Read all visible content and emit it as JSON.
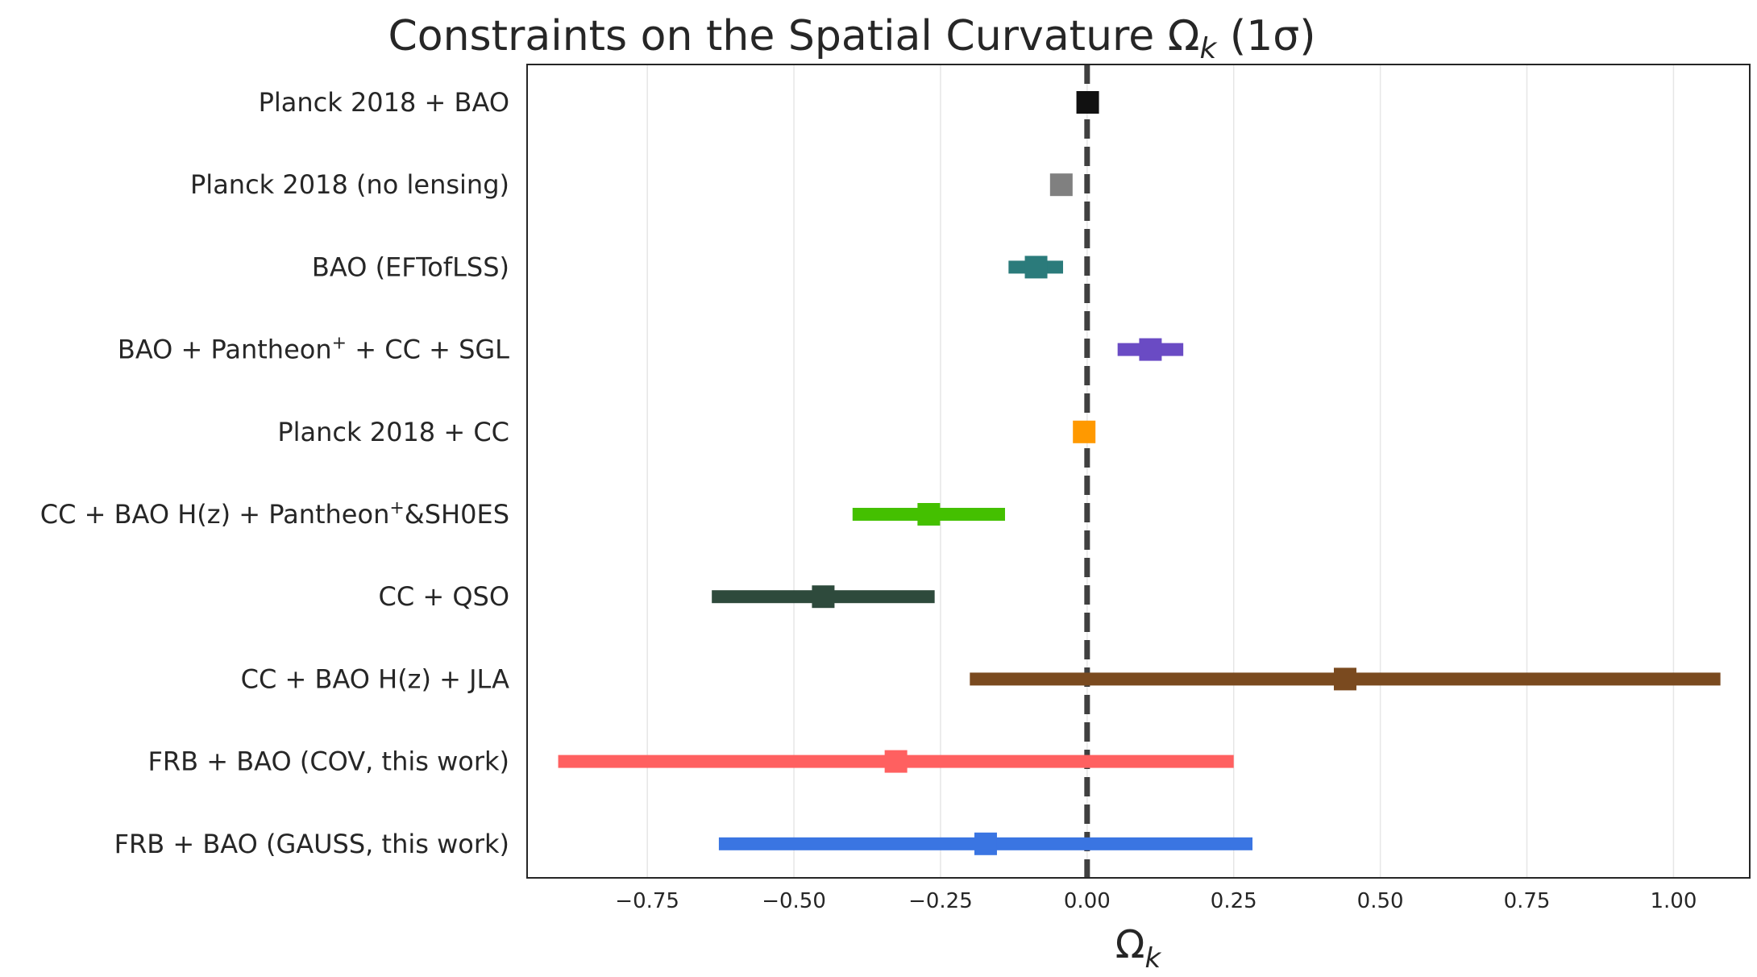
{
  "chart_data": {
    "type": "errorbar",
    "title": "Constraints on the Spatial Curvature Ωₖ (1σ)",
    "title_parts": {
      "pre": "Constraints on the Spatial Curvature Ω",
      "sub": "k",
      "post": " (1σ)"
    },
    "xlabel": "Ωₖ",
    "xlabel_parts": {
      "main": "Ω",
      "sub": "k"
    },
    "xlim": [
      -0.955,
      1.13
    ],
    "xticks": [
      -0.75,
      -0.5,
      -0.25,
      0.0,
      0.25,
      0.5,
      0.75,
      1.0
    ],
    "xtick_labels": [
      "−0.75",
      "−0.50",
      "−0.25",
      "0.00",
      "0.25",
      "0.50",
      "0.75",
      "1.00"
    ],
    "reference_line": {
      "x": 0.0,
      "style": "dashed",
      "color": "#404040"
    },
    "grid": "vertical",
    "entries": [
      {
        "label": "Planck 2018 + BAO",
        "label_parts": [
          "Planck 2018 + BAO"
        ],
        "value": 0.001,
        "low": -0.001,
        "high": 0.003,
        "color": "#111111"
      },
      {
        "label": "Planck 2018 (no lensing)",
        "label_parts": [
          "Planck 2018 (no lensing)"
        ],
        "value": -0.044,
        "low": -0.061,
        "high": -0.026,
        "color": "#808080"
      },
      {
        "label": "BAO (EFTofLSS)",
        "label_parts": [
          "BAO (EFTofLSS)"
        ],
        "value": -0.087,
        "low": -0.134,
        "high": -0.041,
        "color": "#2b7b7b"
      },
      {
        "label": "BAO + Pantheon⁺ + CC + SGL",
        "label_parts": [
          "BAO + Pantheon",
          "+",
          " + CC + SGL"
        ],
        "value": 0.108,
        "low": 0.052,
        "high": 0.164,
        "color": "#6a4bc4"
      },
      {
        "label": "Planck 2018 + CC",
        "label_parts": [
          "Planck 2018 + CC"
        ],
        "value": -0.005,
        "low": -0.015,
        "high": 0.005,
        "color": "#ff9900"
      },
      {
        "label": "CC + BAO H(z) + Pantheon⁺&SH0ES",
        "label_parts": [
          "CC + BAO H(z) + Pantheon",
          "+",
          "&SH0ES"
        ],
        "value": -0.27,
        "low": -0.4,
        "high": -0.14,
        "color": "#44c000"
      },
      {
        "label": "CC + QSO",
        "label_parts": [
          "CC + QSO"
        ],
        "value": -0.45,
        "low": -0.64,
        "high": -0.26,
        "color": "#2e4a3c"
      },
      {
        "label": "CC + BAO H(z) + JLA",
        "label_parts": [
          "CC + BAO H(z) + JLA"
        ],
        "value": 0.44,
        "low": -0.2,
        "high": 1.08,
        "color": "#7a4a1f"
      },
      {
        "label": "FRB + BAO (COV, this work)",
        "label_parts": [
          "FRB + BAO (COV, this work)"
        ],
        "value": -0.326,
        "low": -0.902,
        "high": 0.25,
        "color": "#ff6060"
      },
      {
        "label": "FRB + BAO (GAUSS, this work)",
        "label_parts": [
          "FRB + BAO (GAUSS, this work)"
        ],
        "value": -0.173,
        "low": -0.628,
        "high": 0.282,
        "color": "#3a75e2"
      }
    ]
  }
}
